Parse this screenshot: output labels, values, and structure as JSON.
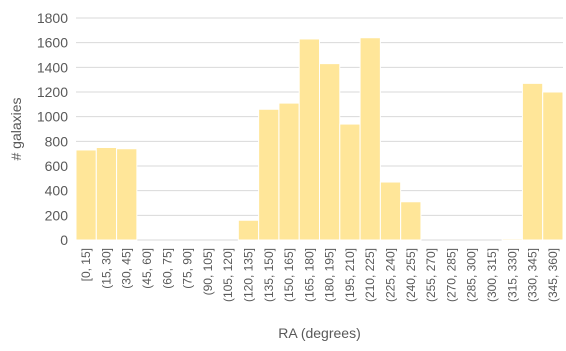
{
  "chart_data": {
    "type": "bar",
    "title": "",
    "xlabel": "RA (degrees)",
    "ylabel": "# galaxies",
    "ylim": [
      0,
      1800
    ],
    "yticks": [
      0,
      200,
      400,
      600,
      800,
      1000,
      1200,
      1400,
      1600,
      1800
    ],
    "grid": true,
    "legend": "none",
    "bar_color": "#FFE699",
    "categories": [
      "[0, 15]",
      "(15, 30]",
      "(30, 45]",
      "(45, 60]",
      "(60, 75]",
      "(75, 90]",
      "(90, 105]",
      "(105, 120]",
      "(120, 135]",
      "(135, 150]",
      "(150, 165]",
      "(165, 180]",
      "(180, 195]",
      "(195, 210]",
      "(210, 225]",
      "(225, 240]",
      "(240, 255]",
      "(255, 270]",
      "(270, 285]",
      "(285, 300]",
      "(300, 315]",
      "(315, 330]",
      "(330, 345]",
      "(345, 360]"
    ],
    "values": [
      730,
      750,
      740,
      0,
      0,
      0,
      0,
      0,
      160,
      1060,
      1110,
      1630,
      1430,
      940,
      1640,
      470,
      310,
      0,
      0,
      0,
      0,
      10,
      1270,
      1200
    ]
  }
}
